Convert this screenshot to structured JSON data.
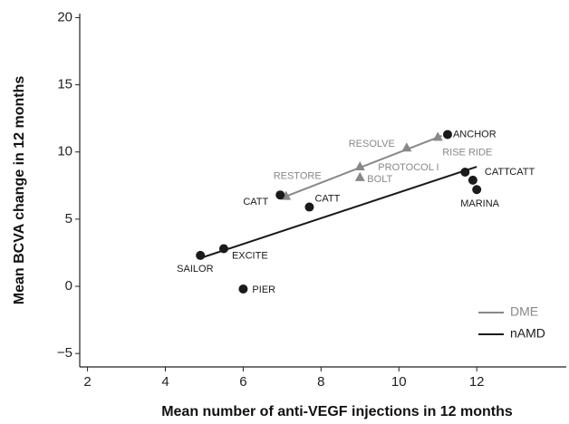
{
  "chart_data": {
    "type": "scatter",
    "x_label": "Mean number of anti-VEGF injections in 12 months",
    "y_label": "Mean BCVA change in 12 months",
    "xlim": [
      1.8,
      14.3
    ],
    "ylim": [
      -6,
      20.3
    ],
    "xticks": [
      2,
      4,
      6,
      8,
      10,
      12
    ],
    "yticks": [
      {
        "value": -5,
        "label": "−5"
      },
      0,
      5,
      10,
      15,
      20
    ],
    "legend": "lower right",
    "series": [
      {
        "name": "DME",
        "color": "#888888",
        "marker": "triangle",
        "x": [
          7.1,
          9.0,
          9.0,
          10.2,
          11.0
        ],
        "y": [
          6.7,
          8.9,
          8.1,
          10.3,
          11.1
        ],
        "labels": [
          "RESTORE",
          "PROTOCOL I",
          "BOLT",
          "RESOLVE",
          "RISE RIDE"
        ],
        "trend": {
          "x": [
            7.1,
            11.1
          ],
          "y": [
            6.7,
            11.2
          ]
        }
      },
      {
        "name": "nAMD",
        "color": "#1a1a1a",
        "marker": "circle",
        "x": [
          4.9,
          5.5,
          6.0,
          6.95,
          7.7,
          11.7,
          11.9,
          12.0,
          11.25
        ],
        "y": [
          2.3,
          2.8,
          -0.2,
          6.8,
          5.9,
          8.5,
          7.9,
          7.2,
          11.3
        ],
        "labels": [
          "SAILOR",
          "EXCITE",
          "PIER",
          "CATT",
          "CATT",
          "CATT",
          "CATT",
          "MARINA",
          "ANCHOR"
        ],
        "trend": {
          "x": [
            4.9,
            12.0
          ],
          "y": [
            2.1,
            8.9
          ]
        }
      }
    ]
  }
}
